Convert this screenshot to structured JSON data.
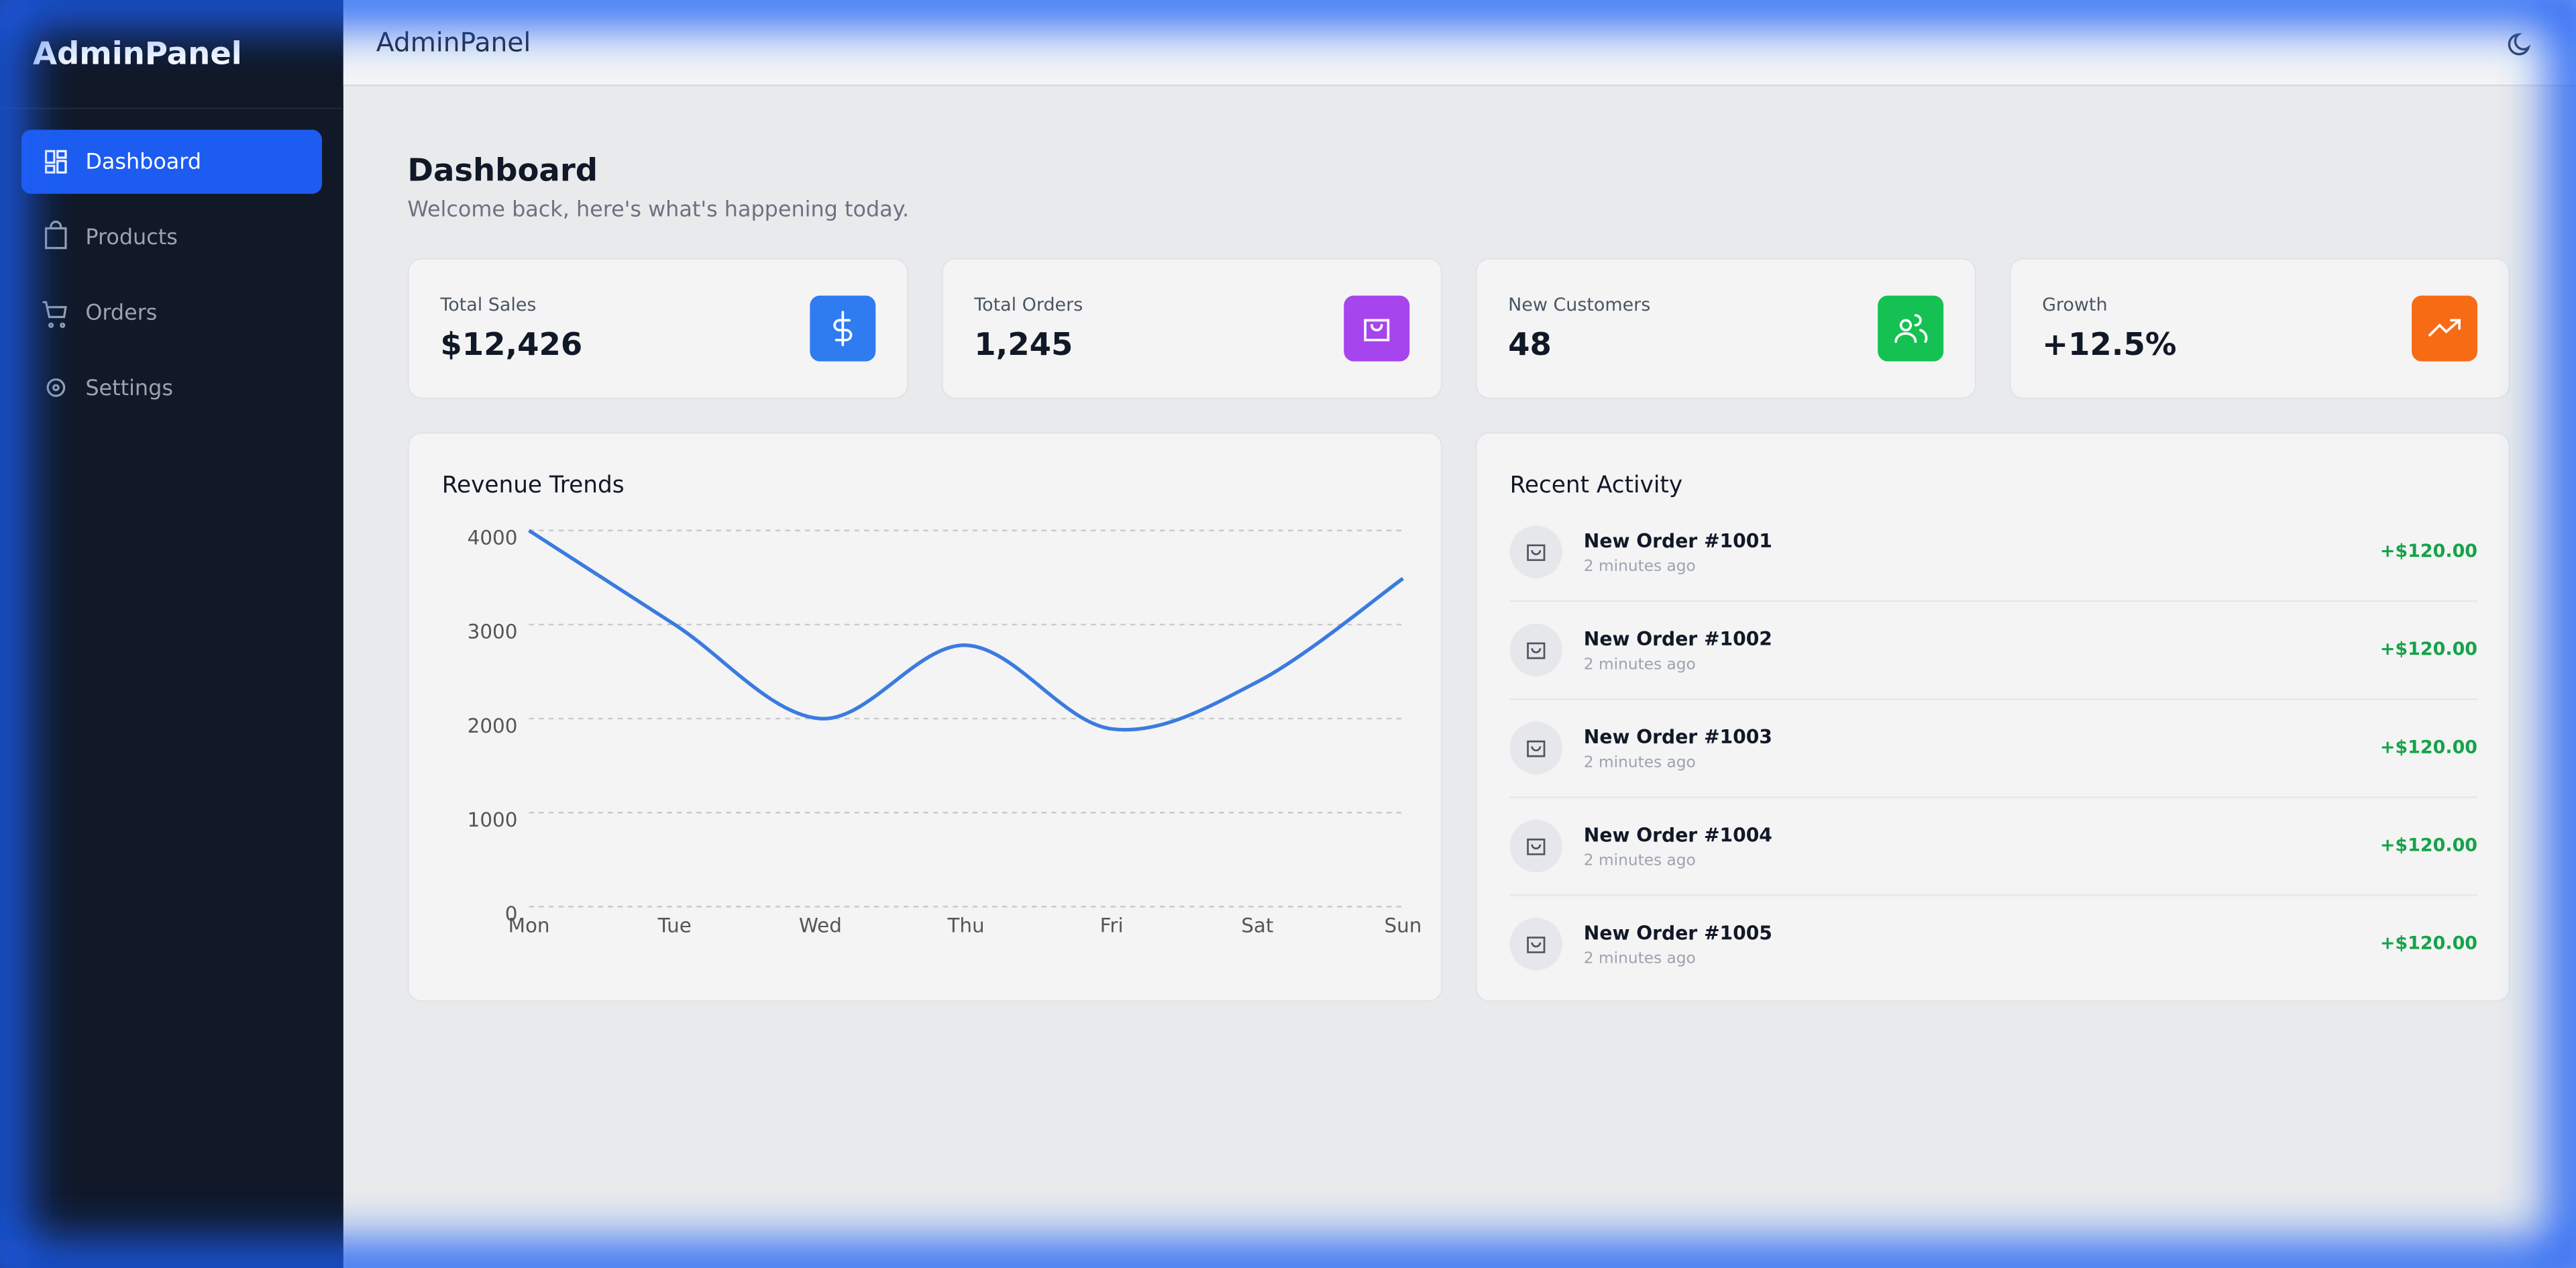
{
  "sidebar": {
    "brand": "AdminPanel",
    "nav": [
      "Dashboard",
      "Products",
      "Orders",
      "Settings"
    ]
  },
  "header": {
    "title": "AdminPanel"
  },
  "page": {
    "title": "Dashboard",
    "subtitle": "Welcome back, here's what's happening today."
  },
  "stats": [
    {
      "label": "Total Sales",
      "value": "$12,426"
    },
    {
      "label": "Total Orders",
      "value": "1,245"
    },
    {
      "label": "New Customers",
      "value": "48"
    },
    {
      "label": "Growth",
      "value": "+12.5%"
    }
  ],
  "chart_data": {
    "type": "line",
    "title": "Revenue Trends",
    "categories": [
      "Mon",
      "Tue",
      "Wed",
      "Thu",
      "Fri",
      "Sat",
      "Sun"
    ],
    "values": [
      4000,
      3000,
      2000,
      2780,
      1890,
      2390,
      3490
    ],
    "color": "#3b7be0",
    "ylim": [
      0,
      4000
    ],
    "yticks": [
      0,
      1000,
      2000,
      3000,
      4000
    ],
    "grid": true
  },
  "activity": {
    "title": "Recent Activity",
    "items": [
      {
        "title": "New Order #1001",
        "time": "2 minutes ago",
        "amount": "+$120.00"
      },
      {
        "title": "New Order #1002",
        "time": "2 minutes ago",
        "amount": "+$120.00"
      },
      {
        "title": "New Order #1003",
        "time": "2 minutes ago",
        "amount": "+$120.00"
      },
      {
        "title": "New Order #1004",
        "time": "2 minutes ago",
        "amount": "+$120.00"
      },
      {
        "title": "New Order #1005",
        "time": "2 minutes ago",
        "amount": "+$120.00"
      }
    ]
  }
}
